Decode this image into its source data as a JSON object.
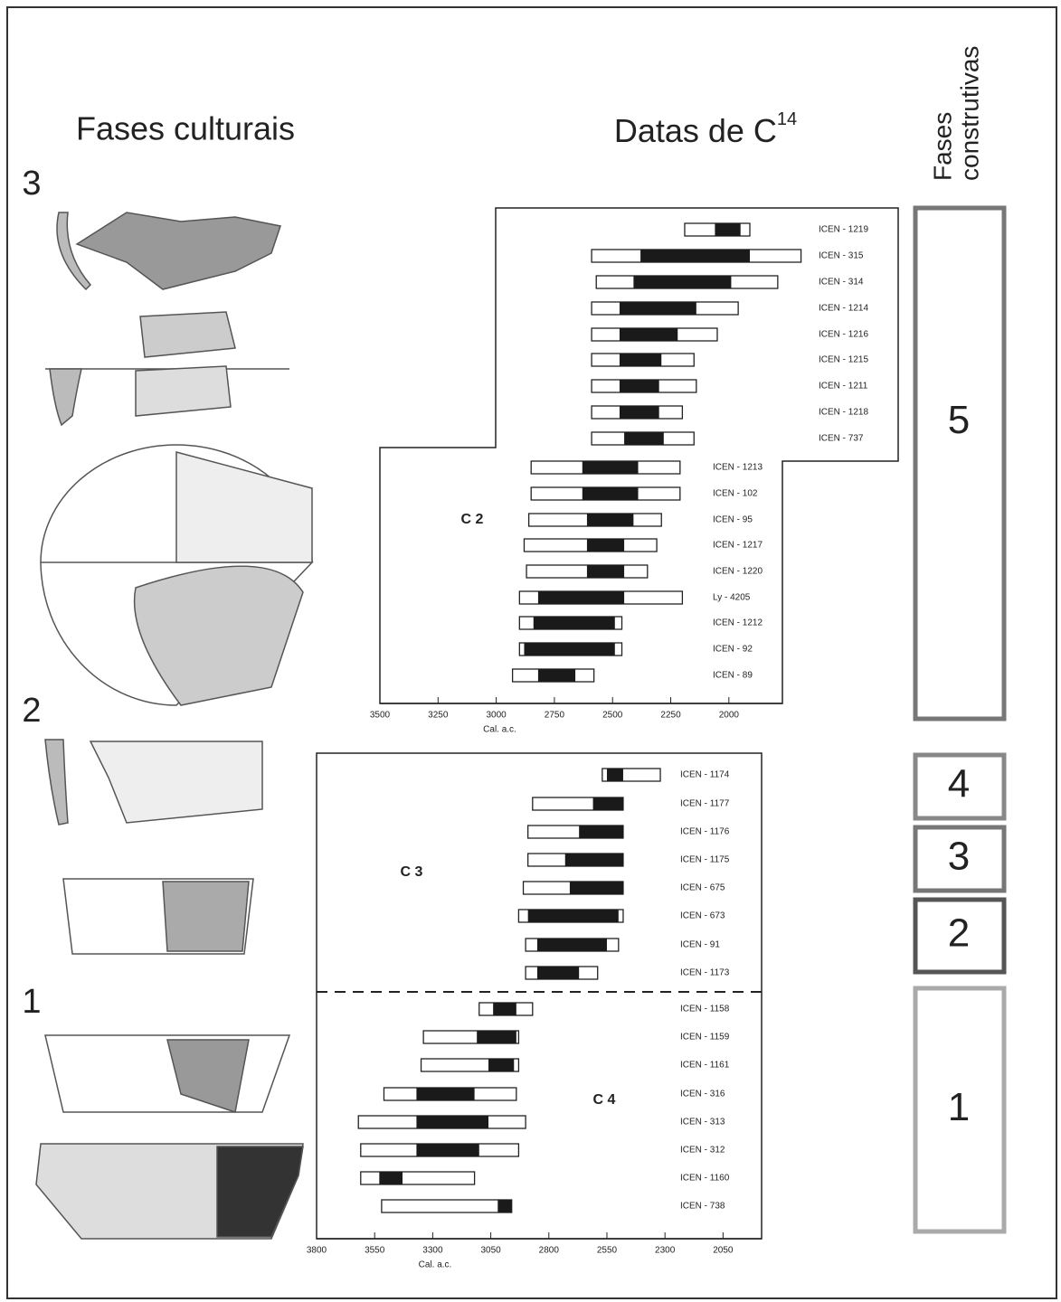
{
  "header": {
    "left": "Fases culturais",
    "center": "Datas de C",
    "center_sup": "14",
    "right": [
      "Fases",
      "construtivas"
    ]
  },
  "cultural_phases": [
    "3",
    "2",
    "1"
  ],
  "charts": [
    {
      "xlim": [
        3500,
        1770
      ],
      "xticks": [
        3500,
        3250,
        3000,
        2750,
        2500,
        2250,
        2000
      ],
      "xlabel": "Cal. a.c.",
      "groups": [
        {
          "label": "C 2",
          "samples": [
            {
              "label": "ICEN - 1219",
              "range": [
                2190,
                1910
              ],
              "dark": [
                2060,
                1950
              ]
            },
            {
              "label": "ICEN - 315",
              "range": [
                2590,
                1690
              ],
              "dark": [
                2380,
                1910
              ]
            },
            {
              "label": "ICEN - 314",
              "range": [
                2570,
                1790
              ],
              "dark": [
                2410,
                1990
              ]
            },
            {
              "label": "ICEN - 1214",
              "range": [
                2590,
                1960
              ],
              "dark": [
                2470,
                2140
              ]
            },
            {
              "label": "ICEN - 1216",
              "range": [
                2590,
                2050
              ],
              "dark": [
                2470,
                2220
              ]
            },
            {
              "label": "ICEN - 1215",
              "range": [
                2590,
                2150
              ],
              "dark": [
                2470,
                2290
              ]
            },
            {
              "label": "ICEN - 1211",
              "range": [
                2590,
                2140
              ],
              "dark": [
                2470,
                2300
              ]
            },
            {
              "label": "ICEN - 1218",
              "range": [
                2590,
                2200
              ],
              "dark": [
                2470,
                2300
              ]
            },
            {
              "label": "ICEN - 737",
              "range": [
                2590,
                2150
              ],
              "dark": [
                2450,
                2280
              ]
            },
            {
              "label": "ICEN - 1213",
              "range": [
                2850,
                2210
              ],
              "dark": [
                2630,
                2390
              ]
            },
            {
              "label": "ICEN - 102",
              "range": [
                2850,
                2210
              ],
              "dark": [
                2630,
                2390
              ]
            },
            {
              "label": "ICEN - 95",
              "range": [
                2860,
                2290
              ],
              "dark": [
                2610,
                2410
              ]
            },
            {
              "label": "ICEN - 1217",
              "range": [
                2880,
                2310
              ],
              "dark": [
                2610,
                2450
              ]
            },
            {
              "label": "ICEN - 1220",
              "range": [
                2870,
                2350
              ],
              "dark": [
                2610,
                2450
              ]
            },
            {
              "label": "Ly - 4205",
              "range": [
                2900,
                2200
              ],
              "dark": [
                2820,
                2450
              ]
            },
            {
              "label": "ICEN - 1212",
              "range": [
                2900,
                2460
              ],
              "dark": [
                2840,
                2490
              ]
            },
            {
              "label": "ICEN - 92",
              "range": [
                2900,
                2460
              ],
              "dark": [
                2880,
                2490
              ]
            },
            {
              "label": "ICEN - 89",
              "range": [
                2930,
                2580
              ],
              "dark": [
                2820,
                2660
              ]
            }
          ]
        }
      ]
    },
    {
      "xlim": [
        3800,
        1884
      ],
      "xticks": [
        3800,
        3550,
        3300,
        3050,
        2800,
        2550,
        2300,
        2050
      ],
      "xlabel": "Cal. a.c.",
      "groups": [
        {
          "label": "C 3",
          "samples": [
            {
              "label": "ICEN - 1174",
              "range": [
                2570,
                2320
              ],
              "dark": [
                2550,
                2480
              ]
            },
            {
              "label": "ICEN - 1177",
              "range": [
                2870,
                2480
              ],
              "dark": [
                2610,
                2480
              ]
            },
            {
              "label": "ICEN - 1176",
              "range": [
                2890,
                2480
              ],
              "dark": [
                2670,
                2480
              ]
            },
            {
              "label": "ICEN - 1175",
              "range": [
                2890,
                2480
              ],
              "dark": [
                2730,
                2480
              ]
            },
            {
              "label": "ICEN - 675",
              "range": [
                2910,
                2480
              ],
              "dark": [
                2710,
                2480
              ]
            },
            {
              "label": "ICEN - 673",
              "range": [
                2930,
                2480
              ],
              "dark": [
                2890,
                2500
              ]
            },
            {
              "label": "ICEN - 91",
              "range": [
                2900,
                2500
              ],
              "dark": [
                2850,
                2550
              ]
            },
            {
              "label": "ICEN - 1173",
              "range": [
                2900,
                2590
              ],
              "dark": [
                2850,
                2670
              ]
            }
          ]
        },
        {
          "label": "C 4",
          "samples": [
            {
              "label": "ICEN - 1158",
              "range": [
                3100,
                2870
              ],
              "dark": [
                3040,
                2940
              ]
            },
            {
              "label": "ICEN - 1159",
              "range": [
                3340,
                2930
              ],
              "dark": [
                3110,
                2940
              ]
            },
            {
              "label": "ICEN - 1161",
              "range": [
                3350,
                2930
              ],
              "dark": [
                3060,
                2950
              ]
            },
            {
              "label": "ICEN - 316",
              "range": [
                3510,
                2940
              ],
              "dark": [
                3370,
                3120
              ]
            },
            {
              "label": "ICEN - 313",
              "range": [
                3620,
                2900
              ],
              "dark": [
                3370,
                3060
              ]
            },
            {
              "label": "ICEN - 312",
              "range": [
                3610,
                2930
              ],
              "dark": [
                3370,
                3100
              ]
            },
            {
              "label": "ICEN - 1160",
              "range": [
                3610,
                3120
              ],
              "dark": [
                3530,
                3430
              ]
            },
            {
              "label": "ICEN - 738",
              "range": [
                3520,
                2960
              ],
              "dark": [
                3020,
                2960
              ]
            }
          ]
        }
      ]
    }
  ],
  "construction_phases": [
    "5",
    "4",
    "3",
    "2",
    "1"
  ]
}
